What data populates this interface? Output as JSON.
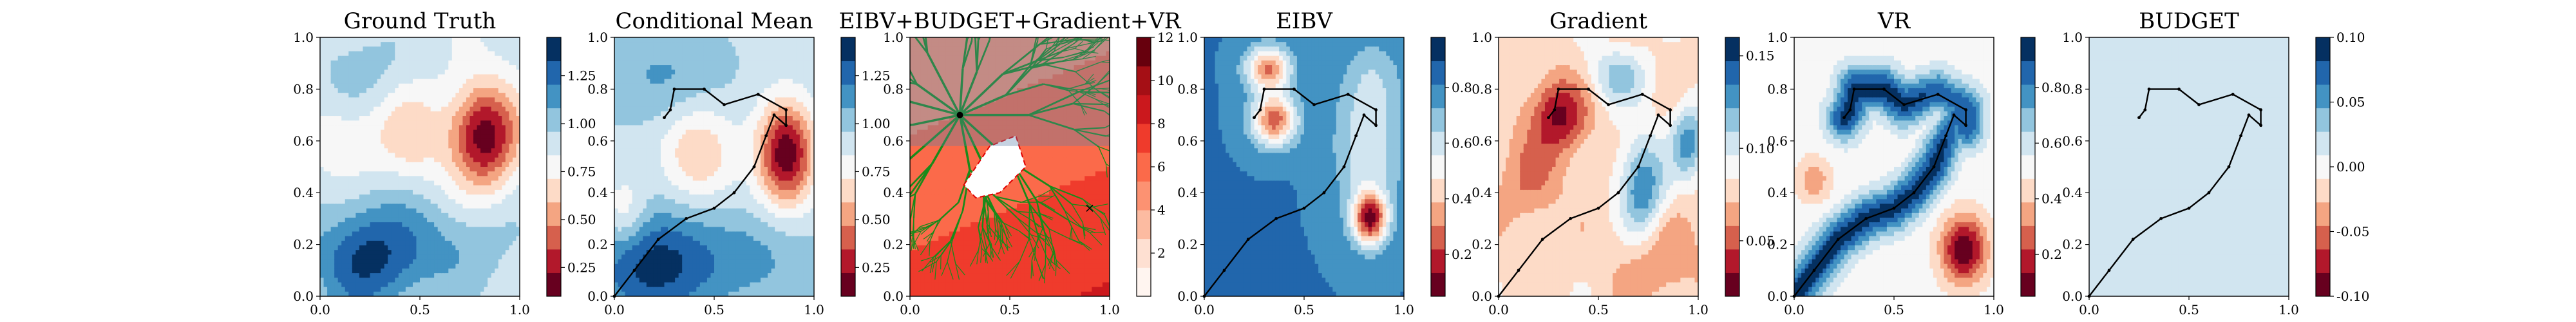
{
  "chart_data": [
    {
      "type": "heatmap",
      "title": "Ground Truth",
      "xlim": [
        0,
        1
      ],
      "ylim": [
        0,
        1
      ],
      "x_ticks": [
        "0.0",
        "0.5",
        "1.0"
      ],
      "y_ticks": [
        "0.0",
        "0.2",
        "0.4",
        "0.6",
        "0.8",
        "1.0"
      ],
      "colormap": "RdBu",
      "colorbar": {
        "range": [
          0.1,
          1.45
        ],
        "ticks": [
          "0.25",
          "0.50",
          "0.75",
          "1.00",
          "1.25"
        ]
      },
      "features": [
        {
          "x": 0.82,
          "y": 0.62,
          "value": 0.15,
          "note": "low region right"
        },
        {
          "x": 0.2,
          "y": 0.1,
          "value": 1.4,
          "note": "high region bottom-left"
        }
      ]
    },
    {
      "type": "heatmap",
      "title": "Conditional Mean",
      "xlim": [
        0,
        1
      ],
      "ylim": [
        0,
        1
      ],
      "x_ticks": [
        "0.0",
        "0.5",
        "1.0"
      ],
      "y_ticks": [
        "0.0",
        "0.2",
        "0.4",
        "0.6",
        "0.8",
        "1.0"
      ],
      "colormap": "RdBu",
      "colorbar": {
        "range": [
          0.1,
          1.45
        ],
        "ticks": [
          "0.25",
          "0.50",
          "0.75",
          "1.00",
          "1.25"
        ]
      },
      "path": {
        "x": [
          0.0,
          0.1,
          0.22,
          0.36,
          0.5,
          0.6,
          0.7,
          0.76,
          0.8,
          0.86,
          0.86,
          0.72,
          0.55,
          0.45,
          0.3,
          0.28,
          0.25
        ],
        "y": [
          0.0,
          0.1,
          0.22,
          0.3,
          0.34,
          0.4,
          0.5,
          0.62,
          0.7,
          0.66,
          0.72,
          0.78,
          0.74,
          0.8,
          0.8,
          0.72,
          0.69
        ]
      }
    },
    {
      "type": "heatmap",
      "title": "EIBV+BUDGET+Gradient+VR",
      "xlim": [
        0,
        1
      ],
      "ylim": [
        0,
        1
      ],
      "x_ticks": [
        "0.0",
        "0.5",
        "1.0"
      ],
      "y_ticks": [
        "0.0",
        "0.2",
        "0.4",
        "0.6",
        "0.8",
        "1.0"
      ],
      "colormap": "Reds",
      "colorbar": {
        "range": [
          0,
          12
        ],
        "ticks": [
          "2",
          "4",
          "6",
          "8",
          "10",
          "12"
        ]
      },
      "tree_root": {
        "x": 0.25,
        "y": 0.7
      },
      "target_marker": {
        "x": 0.9,
        "y": 0.34
      }
    },
    {
      "type": "heatmap",
      "title": "EIBV",
      "xlim": [
        0,
        1
      ],
      "ylim": [
        0,
        1
      ],
      "x_ticks": [
        "0.0",
        "0.5",
        "1.0"
      ],
      "y_ticks": [
        "0.0",
        "0.2",
        "0.4",
        "0.6",
        "0.8",
        "1.0"
      ],
      "colormap": "RdBu",
      "colorbar": {
        "range": [
          0.05,
          0.98
        ],
        "ticks": [
          "0.2",
          "0.4",
          "0.6",
          "0.8"
        ]
      }
    },
    {
      "type": "heatmap",
      "title": "Gradient",
      "xlim": [
        0,
        1
      ],
      "ylim": [
        0,
        1
      ],
      "x_ticks": [
        "0.0",
        "0.5",
        "1.0"
      ],
      "y_ticks": [
        "0.0",
        "0.2",
        "0.4",
        "0.6",
        "0.8",
        "1.0"
      ],
      "colormap": "RdBu",
      "colorbar": {
        "range": [
          0.02,
          0.16
        ],
        "ticks": [
          "0.05",
          "0.10",
          "0.15"
        ]
      }
    },
    {
      "type": "heatmap",
      "title": "VR",
      "xlim": [
        0,
        1
      ],
      "ylim": [
        0,
        1
      ],
      "x_ticks": [
        "0.0",
        "0.5",
        "1.0"
      ],
      "y_ticks": [
        "0.0",
        "0.2",
        "0.4",
        "0.6",
        "0.8",
        "1.0"
      ],
      "colormap": "RdBu",
      "colorbar": {
        "range": [
          0.05,
          0.98
        ],
        "ticks": [
          "0.2",
          "0.4",
          "0.6",
          "0.8"
        ]
      }
    },
    {
      "type": "heatmap",
      "title": "BUDGET",
      "xlim": [
        0,
        1
      ],
      "ylim": [
        0,
        1
      ],
      "x_ticks": [
        "0.0",
        "0.5",
        "1.0"
      ],
      "y_ticks": [
        "0.0",
        "0.2",
        "0.4",
        "0.6",
        "0.8",
        "1.0"
      ],
      "colormap": "RdBu",
      "colorbar": {
        "range": [
          -0.1,
          0.1
        ],
        "ticks": [
          "-0.10",
          "-0.05",
          "0.00",
          "0.05",
          "0.10"
        ]
      }
    }
  ]
}
